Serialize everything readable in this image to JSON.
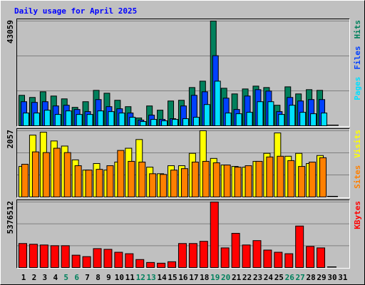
{
  "chart_data": [
    {
      "type": "bar",
      "title": "Daily usage for April 2025",
      "ylim": [
        0,
        43059
      ],
      "yticks": [
        43059
      ],
      "series": [
        {
          "name": "Hits",
          "color": "#00805c",
          "values": [
            12513,
            11640,
            13968,
            12222,
            11058,
            7566,
            9894,
            14550,
            13386,
            10476,
            7857,
            3201,
            8148,
            6402,
            10185,
            10476,
            15714,
            18333,
            43059,
            15423,
            13095,
            15132,
            16296,
            15714,
            8439,
            16005,
            13095,
            14841,
            14550,
            0,
            null
          ]
        },
        {
          "name": "Files",
          "color": "#0040ff",
          "values": [
            9894,
            9603,
            9894,
            8148,
            8439,
            6693,
            5820,
            10767,
            7857,
            6984,
            5238,
            2328,
            4365,
            2619,
            2910,
            8148,
            12513,
            13968,
            28809,
            11349,
            6693,
            12222,
            14841,
            14259,
            5820,
            11640,
            10185,
            10767,
            10767,
            0,
            null
          ]
        },
        {
          "name": "Pages",
          "color": "#00e0ff",
          "values": [
            5238,
            5238,
            6402,
            4656,
            6111,
            4656,
            4656,
            6111,
            5820,
            5238,
            3492,
            1746,
            2619,
            2037,
            2619,
            2910,
            3492,
            8730,
            18333,
            5238,
            4947,
            5529,
            9894,
            9894,
            4656,
            8439,
            5529,
            4947,
            5238,
            0,
            null
          ]
        }
      ]
    },
    {
      "type": "bar",
      "ylim": [
        0,
        2057
      ],
      "yticks": [
        2057
      ],
      "series": [
        {
          "name": "Visits",
          "color": "#ffff00",
          "values": [
            949,
            1921,
            2011,
            1740,
            1582,
            1153,
            836,
            1040,
            836,
            1085,
            1514,
            1785,
            927,
            723,
            972,
            972,
            1356,
            2057,
            1198,
            994,
            949,
            927,
            1107,
            1356,
            1989,
            1266,
            1356,
            1040,
            1288,
            0,
            null
          ]
        },
        {
          "name": "Sites",
          "color": "#ff8000",
          "values": [
            1017,
            1401,
            1379,
            1514,
            1379,
            972,
            836,
            859,
            972,
            1446,
            1107,
            1085,
            723,
            701,
            836,
            881,
            1085,
            1107,
            1062,
            994,
            927,
            972,
            1107,
            1243,
            1266,
            1130,
            949,
            1085,
            1220,
            0,
            null
          ]
        }
      ]
    },
    {
      "type": "bar",
      "ylim": [
        0,
        5376512
      ],
      "yticks": [
        5376512
      ],
      "categories": [
        "1",
        "2",
        "3",
        "4",
        "5",
        "6",
        "7",
        "8",
        "9",
        "10",
        "11",
        "12",
        "13",
        "14",
        "15",
        "16",
        "17",
        "18",
        "19",
        "20",
        "21",
        "22",
        "23",
        "24",
        "25",
        "26",
        "27",
        "28",
        "29",
        "30",
        "31"
      ],
      "highlighted_categories": [
        "5",
        "6",
        "12",
        "13",
        "19",
        "20",
        "26",
        "27"
      ],
      "highlight_color": "#00805c",
      "series": [
        {
          "name": "KBytes",
          "color": "#ff0000",
          "values": [
            1971387,
            1911648,
            1851909,
            1792170,
            1792170,
            1015563,
            896085,
            1553214,
            1493475,
            1254519,
            1135041,
            657129,
            418173,
            358434,
            477912,
            1971387,
            1971387,
            2150604,
            5376512,
            1612953,
            2807733,
            1851909,
            2210343,
            1433736,
            1254519,
            1135041,
            3405123,
            1732431,
            1612953,
            0,
            null
          ]
        }
      ]
    }
  ]
}
